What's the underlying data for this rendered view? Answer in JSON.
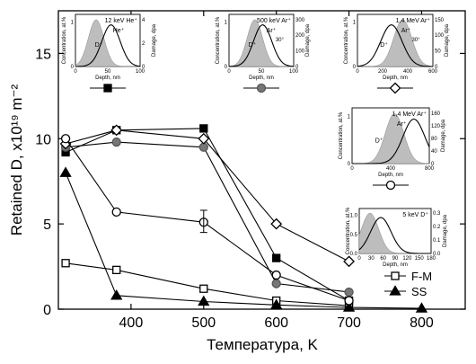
{
  "chart_data": {
    "type": "line",
    "xlabel": "Температура, K",
    "ylabel": "Retained D, x10¹⁹ m⁻²",
    "xlim": [
      300,
      860
    ],
    "ylim": [
      0,
      17.5
    ],
    "xticks": [
      400,
      500,
      600,
      700,
      800
    ],
    "yticks": [
      0,
      5,
      10,
      15
    ],
    "grid": false,
    "legend_position": "bottom-right",
    "series": [
      {
        "name": "F-M",
        "marker": "open-square",
        "x": [
          310,
          380,
          500,
          600,
          700
        ],
        "y": [
          2.7,
          2.3,
          1.2,
          0.5,
          0.2
        ]
      },
      {
        "name": "SS",
        "marker": "filled-triangle",
        "x": [
          310,
          380,
          500,
          600,
          700,
          800
        ],
        "y": [
          8.0,
          0.8,
          0.45,
          0.25,
          0.1,
          0.05
        ]
      },
      {
        "name": "",
        "marker": "filled-square",
        "x": [
          310,
          380,
          500,
          600,
          700
        ],
        "y": [
          9.2,
          10.5,
          10.6,
          3.0,
          0.5
        ]
      },
      {
        "name": "",
        "marker": "filled-circle",
        "x": [
          310,
          380,
          500,
          600,
          700
        ],
        "y": [
          9.5,
          9.8,
          9.5,
          1.5,
          1.0
        ]
      },
      {
        "name": "",
        "marker": "open-diamond",
        "x": [
          310,
          380,
          500,
          600,
          700
        ],
        "y": [
          9.7,
          10.5,
          10.0,
          5.0,
          2.8
        ]
      },
      {
        "name": "",
        "marker": "open-circle",
        "x": [
          310,
          380,
          500,
          600,
          700
        ],
        "y": [
          10.0,
          5.7,
          5.1,
          2.0,
          0.5
        ]
      }
    ],
    "error_bars": [
      {
        "x": 500,
        "y": 5.1,
        "low": 4.5,
        "high": 5.8
      }
    ],
    "insets": [
      {
        "id": "he",
        "ion_label": "12 keV He⁺",
        "species_labels": [
          "He⁺",
          "D⁺"
        ],
        "xlabel": "Depth, nm",
        "ylabel_left": "Concentration, at.%",
        "ylabel_right": "Damage, dpa",
        "x_ticks": [
          "0",
          "50",
          "100"
        ],
        "yl_ticks": [
          "0",
          "1"
        ],
        "yr_ticks": [
          "0",
          "2",
          "4"
        ],
        "legend_marker": "filled-square",
        "shaded_peak": 0.32,
        "curve_peak": 0.55
      },
      {
        "id": "ar500",
        "ion_label": "500 keV Ar⁺",
        "species_labels": [
          "Ar⁺",
          "D⁺"
        ],
        "angle_label": "30°",
        "xlabel": "Depth, nm",
        "ylabel_left": "Concentration, at.%",
        "ylabel_right": "Damage, dpa",
        "x_ticks": [
          "0",
          "50",
          "100"
        ],
        "yl_ticks": [
          "0",
          "1"
        ],
        "yr_ticks": [
          "0",
          "100",
          "200",
          "300"
        ],
        "legend_marker": "filled-circle",
        "shaded_peak": 0.4,
        "curve_peak": 0.52
      },
      {
        "id": "ar14a",
        "ion_label": "1,4 MeV Ar⁺",
        "species_labels": [
          "Ar⁺",
          "D⁺"
        ],
        "angle_label": "30°",
        "xlabel": "Depth, nm",
        "ylabel_left": "Concentration, at.%",
        "ylabel_right": "Damage, dpa",
        "x_ticks": [
          "0",
          "200",
          "400",
          "600"
        ],
        "yl_ticks": [
          "0",
          "1"
        ],
        "yr_ticks": [
          "0",
          "50",
          "100",
          "150"
        ],
        "legend_marker": "open-diamond",
        "shaded_peak": 0.6,
        "curve_peak": 0.45
      },
      {
        "id": "ar14b",
        "ion_label": "1,4 MeV Ar⁺",
        "species_labels": [
          "Ar⁺",
          "D⁺"
        ],
        "xlabel": "Depth, nm",
        "ylabel_left": "Concentration, at.%",
        "ylabel_right": "Damage, dpa",
        "x_ticks": [
          "0",
          "400",
          "800"
        ],
        "yl_ticks": [
          "0",
          "1"
        ],
        "yr_ticks": [
          "0",
          "40",
          "80",
          "120",
          "160"
        ],
        "legend_marker": "open-circle",
        "shaded_peak": 0.55,
        "curve_peak": 0.8
      },
      {
        "id": "d5",
        "ion_label": "5 keV D⁺",
        "species_labels": [],
        "xlabel": "Depth, nm",
        "ylabel_left": "Concentration, at.%",
        "ylabel_right": "Damage, dpa",
        "x_ticks": [
          "0",
          "30",
          "60",
          "90",
          "120",
          "150",
          "180"
        ],
        "yl_ticks": [
          "0.0",
          "0.5",
          "1.0"
        ],
        "yr_ticks": [
          "0.0",
          "0.1",
          "0.2",
          "0.3"
        ],
        "legend_marker": "",
        "shaded_peak": 0.15,
        "curve_peak": 0.3
      }
    ]
  }
}
